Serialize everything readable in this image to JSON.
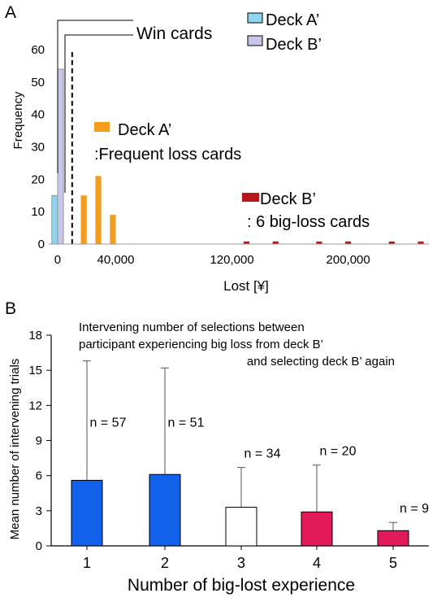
{
  "chart_data": [
    {
      "panel_label": "A",
      "type": "bar",
      "ylabel": "Frequency",
      "xlabel": "Lost [¥]",
      "xlim": [
        -5000,
        255000
      ],
      "ylim": [
        0,
        60
      ],
      "xticks": [
        0,
        40000,
        120000,
        200000
      ],
      "xtick_labels": [
        "0",
        "40,000",
        "120,000",
        "200,000"
      ],
      "yticks": [
        0,
        10,
        20,
        30,
        40,
        50,
        60
      ],
      "threshold_x": 10000,
      "bin_width": 4000,
      "series": [
        {
          "name": "Deck A'",
          "color": "#8ed4ec",
          "points": [
            {
              "x": -2000,
              "y": 15
            }
          ]
        },
        {
          "name": "Deck B'",
          "color": "#c7c5ea",
          "points": [
            {
              "x": 2000,
              "y": 54
            }
          ]
        },
        {
          "name": "Deck A' :Frequent loss cards",
          "color": "#f39c1e",
          "points": [
            {
              "x": 18000,
              "y": 15
            },
            {
              "x": 28000,
              "y": 21
            },
            {
              "x": 38000,
              "y": 9
            }
          ]
        },
        {
          "name": "Deck B' : 6 big-loss cards",
          "color": "#b8161a",
          "points": [
            {
              "x": 130000,
              "y": 0.8
            },
            {
              "x": 150000,
              "y": 0.8
            },
            {
              "x": 180000,
              "y": 0.8
            },
            {
              "x": 200000,
              "y": 0.8
            },
            {
              "x": 230000,
              "y": 0.8
            },
            {
              "x": 250000,
              "y": 0.8
            }
          ]
        }
      ],
      "annotations": {
        "win_cards": "Win cards",
        "legend_a": "Deck A’",
        "legend_b": "Deck B’",
        "freq_loss_title": "Deck A’",
        "freq_loss_sub": ":Frequent loss cards",
        "big_loss_title": "Deck B’",
        "big_loss_sub": ": 6 big-loss cards"
      }
    },
    {
      "panel_label": "B",
      "type": "bar",
      "title_lines": [
        "Intervening number of selections between",
        "participant experiencing big loss from deck B’",
        "and selecting deck B’ again"
      ],
      "xlabel": "Number of big-lost experience",
      "ylabel": "Mean number of intervening trials",
      "ylim": [
        0,
        18
      ],
      "yticks": [
        0,
        3,
        6,
        9,
        12,
        15,
        18
      ],
      "categories": [
        "1",
        "2",
        "3",
        "4",
        "5"
      ],
      "values": [
        5.6,
        6.1,
        3.3,
        2.9,
        1.3
      ],
      "errors": [
        10.2,
        9.1,
        3.4,
        4.0,
        0.7
      ],
      "n_labels": [
        "n = 57",
        "n = 51",
        "n = 34",
        "n = 20",
        "n = 9"
      ],
      "colors": [
        "#1161ea",
        "#1161ea",
        "#ffffff",
        "#e31a5a",
        "#e31a5a"
      ]
    }
  ]
}
